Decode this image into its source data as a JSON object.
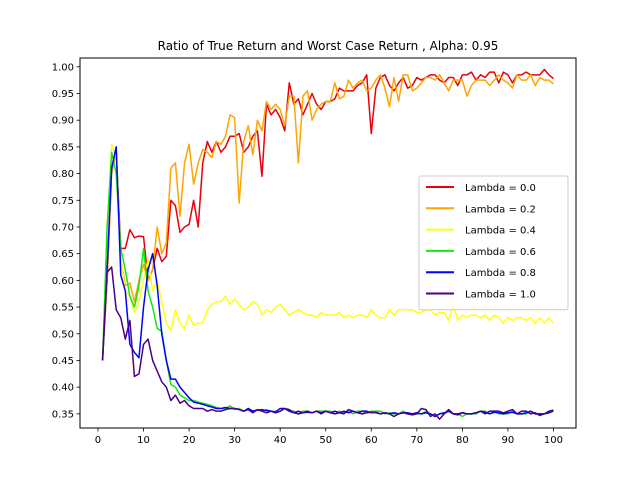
{
  "chart_data": {
    "type": "line",
    "title": "Ratio of True Return and Worst Case Return , Alpha: 0.95",
    "xlabel": "",
    "ylabel": "",
    "xlim": [
      -3.95,
      104.95
    ],
    "ylim": [
      0.3235,
      1.0165
    ],
    "xticks": [
      0,
      10,
      20,
      30,
      40,
      50,
      60,
      70,
      80,
      90,
      100
    ],
    "yticks": [
      0.35,
      0.4,
      0.45,
      0.5,
      0.55,
      0.6,
      0.65,
      0.7,
      0.75,
      0.8,
      0.85,
      0.9,
      0.95,
      1.0
    ],
    "ytick_labels": [
      "0.35",
      "0.40",
      "0.45",
      "0.50",
      "0.55",
      "0.60",
      "0.65",
      "0.70",
      "0.75",
      "0.80",
      "0.85",
      "0.90",
      "0.95",
      "1.00"
    ],
    "grid": false,
    "legend_position": "center-right",
    "x": [
      1,
      2,
      3,
      4,
      5,
      6,
      7,
      8,
      9,
      10,
      11,
      12,
      13,
      14,
      15,
      16,
      17,
      18,
      19,
      20,
      21,
      22,
      23,
      24,
      25,
      26,
      27,
      28,
      29,
      30,
      31,
      32,
      33,
      34,
      35,
      36,
      37,
      38,
      39,
      40,
      41,
      42,
      43,
      44,
      45,
      46,
      47,
      48,
      49,
      50,
      51,
      52,
      53,
      54,
      55,
      56,
      57,
      58,
      59,
      60,
      61,
      62,
      63,
      64,
      65,
      66,
      67,
      68,
      69,
      70,
      71,
      72,
      73,
      74,
      75,
      76,
      77,
      78,
      79,
      80,
      81,
      82,
      83,
      84,
      85,
      86,
      87,
      88,
      89,
      90,
      91,
      92,
      93,
      94,
      95,
      96,
      97,
      98,
      99,
      100
    ],
    "series": [
      {
        "name": "Lambda = 0.0",
        "color": "#e8000b",
        "values": [
          0.45,
          0.6,
          0.81,
          0.84,
          0.66,
          0.66,
          0.695,
          0.68,
          0.683,
          0.682,
          0.6,
          0.62,
          0.66,
          0.635,
          0.645,
          0.75,
          0.74,
          0.69,
          0.7,
          0.705,
          0.75,
          0.7,
          0.82,
          0.86,
          0.84,
          0.86,
          0.84,
          0.85,
          0.87,
          0.87,
          0.875,
          0.84,
          0.85,
          0.87,
          0.88,
          0.795,
          0.93,
          0.91,
          0.92,
          0.905,
          0.88,
          0.97,
          0.93,
          0.94,
          0.91,
          0.93,
          0.95,
          0.93,
          0.92,
          0.935,
          0.935,
          0.94,
          0.96,
          0.955,
          0.955,
          0.955,
          0.965,
          0.97,
          0.985,
          0.875,
          0.96,
          0.98,
          0.985,
          0.965,
          0.955,
          0.97,
          0.98,
          0.96,
          0.965,
          0.98,
          0.975,
          0.98,
          0.985,
          0.985,
          0.975,
          0.97,
          0.98,
          0.98,
          0.965,
          0.985,
          0.985,
          0.99,
          0.975,
          0.985,
          0.98,
          0.99,
          0.99,
          0.97,
          0.99,
          0.985,
          0.97,
          0.985,
          0.985,
          0.99,
          0.985,
          0.985,
          0.985,
          0.995,
          0.985,
          0.978
        ]
      },
      {
        "name": "Lambda = 0.2",
        "color": "#ffa500",
        "values": [
          0.45,
          0.6,
          0.8,
          0.84,
          0.64,
          0.59,
          0.595,
          0.56,
          0.6,
          0.63,
          0.6,
          0.62,
          0.7,
          0.65,
          0.67,
          0.81,
          0.82,
          0.72,
          0.82,
          0.855,
          0.78,
          0.82,
          0.845,
          0.84,
          0.83,
          0.86,
          0.855,
          0.87,
          0.91,
          0.905,
          0.745,
          0.86,
          0.89,
          0.835,
          0.9,
          0.88,
          0.935,
          0.92,
          0.93,
          0.92,
          0.89,
          0.945,
          0.945,
          0.82,
          0.945,
          0.955,
          0.9,
          0.92,
          0.93,
          0.935,
          0.935,
          0.97,
          0.94,
          0.945,
          0.975,
          0.96,
          0.97,
          0.975,
          0.955,
          0.96,
          0.975,
          0.985,
          0.96,
          0.925,
          0.98,
          0.935,
          0.985,
          0.985,
          0.955,
          0.96,
          0.97,
          0.98,
          0.98,
          0.975,
          0.985,
          0.97,
          0.955,
          0.975,
          0.975,
          0.975,
          0.945,
          0.965,
          0.975,
          0.975,
          0.975,
          0.965,
          0.975,
          0.985,
          0.975,
          0.97,
          0.96,
          0.985,
          0.975,
          0.975,
          0.985,
          0.965,
          0.98,
          0.975,
          0.975,
          0.968
        ]
      },
      {
        "name": "Lambda = 0.4",
        "color": "#ffff14",
        "values": [
          0.45,
          0.62,
          0.855,
          0.83,
          0.64,
          0.58,
          0.57,
          0.54,
          0.56,
          0.6,
          0.64,
          0.58,
          0.6,
          0.56,
          0.52,
          0.505,
          0.545,
          0.52,
          0.51,
          0.535,
          0.515,
          0.52,
          0.52,
          0.545,
          0.555,
          0.56,
          0.56,
          0.57,
          0.555,
          0.565,
          0.555,
          0.545,
          0.55,
          0.56,
          0.555,
          0.535,
          0.545,
          0.54,
          0.55,
          0.555,
          0.545,
          0.535,
          0.54,
          0.545,
          0.54,
          0.535,
          0.535,
          0.53,
          0.54,
          0.535,
          0.535,
          0.535,
          0.54,
          0.53,
          0.535,
          0.53,
          0.535,
          0.535,
          0.53,
          0.545,
          0.535,
          0.53,
          0.53,
          0.545,
          0.535,
          0.545,
          0.545,
          0.545,
          0.545,
          0.54,
          0.54,
          0.545,
          0.545,
          0.535,
          0.54,
          0.54,
          0.525,
          0.555,
          0.525,
          0.535,
          0.53,
          0.535,
          0.535,
          0.53,
          0.535,
          0.525,
          0.535,
          0.53,
          0.52,
          0.53,
          0.525,
          0.53,
          0.53,
          0.525,
          0.53,
          0.52,
          0.53,
          0.52,
          0.53,
          0.52
        ]
      },
      {
        "name": "Lambda = 0.6",
        "color": "#15e815",
        "values": [
          0.45,
          0.7,
          0.84,
          0.8,
          0.66,
          0.62,
          0.57,
          0.55,
          0.59,
          0.66,
          0.58,
          0.55,
          0.51,
          0.505,
          0.45,
          0.405,
          0.4,
          0.385,
          0.38,
          0.375,
          0.375,
          0.372,
          0.37,
          0.368,
          0.365,
          0.362,
          0.36,
          0.36,
          0.365,
          0.358,
          0.36,
          0.355,
          0.36,
          0.355,
          0.358,
          0.355,
          0.358,
          0.355,
          0.352,
          0.355,
          0.36,
          0.355,
          0.355,
          0.35,
          0.355,
          0.355,
          0.352,
          0.355,
          0.355,
          0.355,
          0.355,
          0.35,
          0.355,
          0.352,
          0.355,
          0.35,
          0.355,
          0.355,
          0.352,
          0.355,
          0.355,
          0.355,
          0.35,
          0.352,
          0.35,
          0.35,
          0.355,
          0.35,
          0.35,
          0.35,
          0.35,
          0.355,
          0.35,
          0.345,
          0.35,
          0.35,
          0.355,
          0.35,
          0.35,
          0.345,
          0.35,
          0.35,
          0.35,
          0.355,
          0.355,
          0.35,
          0.355,
          0.35,
          0.35,
          0.35,
          0.355,
          0.35,
          0.35,
          0.35,
          0.355,
          0.35,
          0.35,
          0.35,
          0.352,
          0.355
        ]
      },
      {
        "name": "Lambda = 0.8",
        "color": "#0000ff",
        "values": [
          0.45,
          0.62,
          0.81,
          0.85,
          0.61,
          0.58,
          0.48,
          0.465,
          0.455,
          0.55,
          0.62,
          0.65,
          0.59,
          0.5,
          0.45,
          0.415,
          0.415,
          0.4,
          0.39,
          0.38,
          0.372,
          0.37,
          0.368,
          0.365,
          0.363,
          0.36,
          0.36,
          0.362,
          0.36,
          0.36,
          0.358,
          0.355,
          0.36,
          0.355,
          0.357,
          0.358,
          0.356,
          0.355,
          0.354,
          0.36,
          0.36,
          0.355,
          0.352,
          0.355,
          0.352,
          0.353,
          0.352,
          0.355,
          0.352,
          0.355,
          0.352,
          0.355,
          0.352,
          0.355,
          0.352,
          0.355,
          0.352,
          0.355,
          0.355,
          0.352,
          0.353,
          0.35,
          0.352,
          0.35,
          0.352,
          0.35,
          0.352,
          0.352,
          0.35,
          0.352,
          0.35,
          0.352,
          0.35,
          0.345,
          0.35,
          0.352,
          0.355,
          0.35,
          0.35,
          0.352,
          0.35,
          0.35,
          0.352,
          0.355,
          0.353,
          0.35,
          0.353,
          0.352,
          0.35,
          0.352,
          0.353,
          0.35,
          0.35,
          0.352,
          0.355,
          0.35,
          0.35,
          0.35,
          0.352,
          0.356
        ]
      },
      {
        "name": "Lambda = 1.0",
        "color": "#4b0082",
        "values": [
          0.45,
          0.615,
          0.625,
          0.545,
          0.53,
          0.49,
          0.525,
          0.42,
          0.425,
          0.48,
          0.49,
          0.45,
          0.43,
          0.41,
          0.4,
          0.375,
          0.385,
          0.37,
          0.375,
          0.365,
          0.36,
          0.36,
          0.36,
          0.355,
          0.358,
          0.355,
          0.355,
          0.358,
          0.36,
          0.36,
          0.358,
          0.355,
          0.358,
          0.352,
          0.358,
          0.355,
          0.352,
          0.355,
          0.352,
          0.355,
          0.36,
          0.358,
          0.352,
          0.35,
          0.352,
          0.355,
          0.352,
          0.355,
          0.35,
          0.355,
          0.352,
          0.35,
          0.352,
          0.35,
          0.358,
          0.355,
          0.352,
          0.35,
          0.352,
          0.353,
          0.352,
          0.35,
          0.352,
          0.35,
          0.345,
          0.35,
          0.352,
          0.35,
          0.348,
          0.35,
          0.36,
          0.358,
          0.345,
          0.35,
          0.34,
          0.35,
          0.358,
          0.35,
          0.348,
          0.352,
          0.35,
          0.35,
          0.352,
          0.355,
          0.35,
          0.355,
          0.355,
          0.355,
          0.352,
          0.355,
          0.358,
          0.35,
          0.355,
          0.355,
          0.35,
          0.352,
          0.347,
          0.35,
          0.355,
          0.357
        ]
      }
    ]
  }
}
